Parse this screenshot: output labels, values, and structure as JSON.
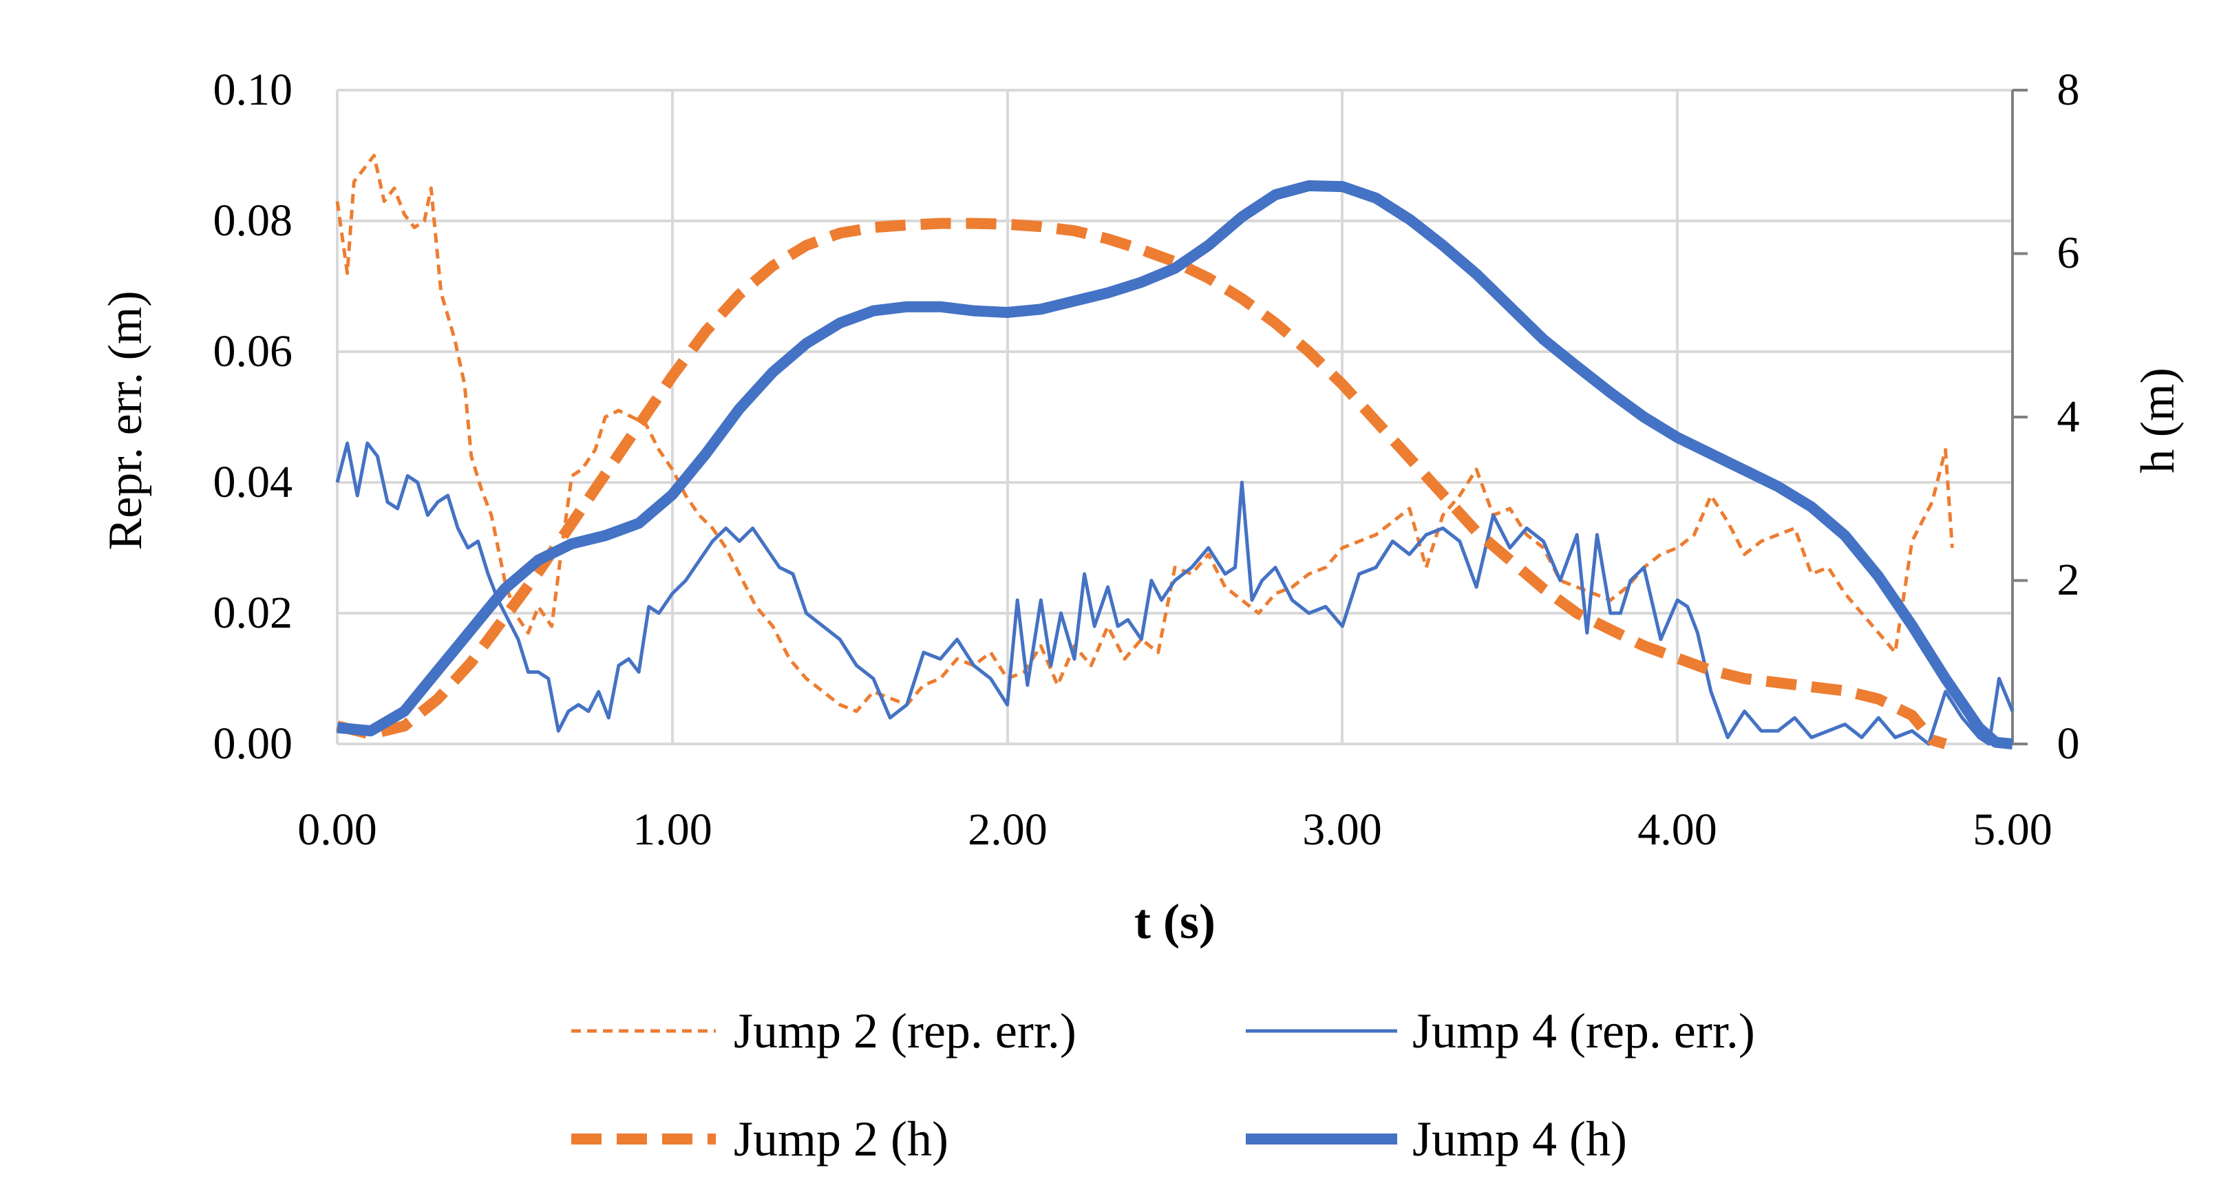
{
  "chart_data": {
    "type": "line",
    "title": "",
    "xlabel": "t (s)",
    "ylabel_left": "Repr. err. (m)",
    "ylabel_right": "h (m)",
    "xlim": [
      0,
      5
    ],
    "ylim_left": [
      0,
      0.1
    ],
    "ylim_right": [
      0,
      8
    ],
    "x_ticks": [
      "0.00",
      "1.00",
      "2.00",
      "3.00",
      "4.00",
      "5.00"
    ],
    "y_left_ticks": [
      "0.00",
      "0.02",
      "0.04",
      "0.06",
      "0.08",
      "0.10"
    ],
    "y_right_ticks": [
      "0",
      "2",
      "4",
      "6",
      "8"
    ],
    "grid": true,
    "legend_position": "bottom",
    "series": [
      {
        "name": "Jump 2 (rep. err.)",
        "axis": "left",
        "color": "#ED7D31",
        "style": "dashed-thin",
        "x": [
          0.0,
          0.03,
          0.05,
          0.08,
          0.11,
          0.14,
          0.17,
          0.2,
          0.23,
          0.26,
          0.28,
          0.31,
          0.35,
          0.38,
          0.4,
          0.43,
          0.46,
          0.5,
          0.53,
          0.57,
          0.6,
          0.64,
          0.67,
          0.7,
          0.73,
          0.77,
          0.8,
          0.84,
          0.88,
          0.92,
          0.96,
          1.0,
          1.04,
          1.08,
          1.12,
          1.16,
          1.2,
          1.25,
          1.3,
          1.35,
          1.4,
          1.45,
          1.5,
          1.55,
          1.6,
          1.65,
          1.7,
          1.75,
          1.8,
          1.85,
          1.9,
          1.95,
          2.0,
          2.05,
          2.1,
          2.15,
          2.2,
          2.25,
          2.3,
          2.35,
          2.4,
          2.45,
          2.5,
          2.55,
          2.6,
          2.65,
          2.7,
          2.75,
          2.8,
          2.85,
          2.9,
          2.95,
          3.0,
          3.05,
          3.1,
          3.15,
          3.2,
          3.25,
          3.3,
          3.35,
          3.4,
          3.45,
          3.5,
          3.55,
          3.6,
          3.65,
          3.7,
          3.75,
          3.8,
          3.85,
          3.9,
          3.95,
          4.0,
          4.05,
          4.1,
          4.15,
          4.2,
          4.25,
          4.3,
          4.35,
          4.4,
          4.45,
          4.5,
          4.55,
          4.6,
          4.65,
          4.7,
          4.73,
          4.76,
          4.8,
          4.82
        ],
        "values": [
          0.083,
          0.072,
          0.086,
          0.088,
          0.09,
          0.083,
          0.085,
          0.081,
          0.079,
          0.08,
          0.085,
          0.069,
          0.062,
          0.055,
          0.044,
          0.039,
          0.035,
          0.025,
          0.02,
          0.017,
          0.021,
          0.018,
          0.03,
          0.041,
          0.042,
          0.045,
          0.05,
          0.051,
          0.05,
          0.049,
          0.045,
          0.042,
          0.038,
          0.035,
          0.033,
          0.03,
          0.026,
          0.021,
          0.018,
          0.013,
          0.01,
          0.008,
          0.006,
          0.005,
          0.008,
          0.007,
          0.006,
          0.009,
          0.01,
          0.013,
          0.012,
          0.014,
          0.01,
          0.011,
          0.015,
          0.009,
          0.015,
          0.012,
          0.018,
          0.013,
          0.016,
          0.014,
          0.027,
          0.026,
          0.029,
          0.024,
          0.022,
          0.02,
          0.023,
          0.024,
          0.026,
          0.027,
          0.03,
          0.031,
          0.032,
          0.034,
          0.036,
          0.027,
          0.035,
          0.038,
          0.042,
          0.035,
          0.036,
          0.032,
          0.03,
          0.025,
          0.024,
          0.023,
          0.022,
          0.024,
          0.027,
          0.029,
          0.03,
          0.032,
          0.038,
          0.034,
          0.029,
          0.031,
          0.032,
          0.033,
          0.026,
          0.027,
          0.023,
          0.02,
          0.017,
          0.014,
          0.031,
          0.034,
          0.037,
          0.045,
          0.03
        ]
      },
      {
        "name": "Jump 4 (rep. err.)",
        "axis": "left",
        "color": "#4472C4",
        "style": "solid-thin",
        "x": [
          0.0,
          0.03,
          0.06,
          0.09,
          0.12,
          0.15,
          0.18,
          0.21,
          0.24,
          0.27,
          0.3,
          0.33,
          0.36,
          0.39,
          0.42,
          0.45,
          0.48,
          0.51,
          0.54,
          0.57,
          0.6,
          0.63,
          0.66,
          0.69,
          0.72,
          0.75,
          0.78,
          0.81,
          0.84,
          0.87,
          0.9,
          0.93,
          0.96,
          1.0,
          1.04,
          1.08,
          1.12,
          1.16,
          1.2,
          1.24,
          1.28,
          1.32,
          1.36,
          1.4,
          1.45,
          1.5,
          1.55,
          1.6,
          1.65,
          1.7,
          1.75,
          1.8,
          1.85,
          1.9,
          1.95,
          2.0,
          2.03,
          2.06,
          2.1,
          2.13,
          2.16,
          2.2,
          2.23,
          2.26,
          2.3,
          2.33,
          2.36,
          2.4,
          2.43,
          2.46,
          2.5,
          2.55,
          2.6,
          2.65,
          2.68,
          2.7,
          2.73,
          2.76,
          2.8,
          2.85,
          2.9,
          2.95,
          3.0,
          3.05,
          3.1,
          3.15,
          3.2,
          3.25,
          3.3,
          3.35,
          3.4,
          3.45,
          3.5,
          3.55,
          3.6,
          3.65,
          3.7,
          3.73,
          3.76,
          3.8,
          3.83,
          3.86,
          3.9,
          3.95,
          4.0,
          4.03,
          4.06,
          4.1,
          4.15,
          4.2,
          4.25,
          4.3,
          4.35,
          4.4,
          4.45,
          4.5,
          4.55,
          4.6,
          4.65,
          4.7,
          4.75,
          4.8,
          4.85,
          4.9,
          4.93,
          4.96,
          5.0
        ],
        "values": [
          0.04,
          0.046,
          0.038,
          0.046,
          0.044,
          0.037,
          0.036,
          0.041,
          0.04,
          0.035,
          0.037,
          0.038,
          0.033,
          0.03,
          0.031,
          0.026,
          0.022,
          0.019,
          0.016,
          0.011,
          0.011,
          0.01,
          0.002,
          0.005,
          0.006,
          0.005,
          0.008,
          0.004,
          0.012,
          0.013,
          0.011,
          0.021,
          0.02,
          0.023,
          0.025,
          0.028,
          0.031,
          0.033,
          0.031,
          0.033,
          0.03,
          0.027,
          0.026,
          0.02,
          0.018,
          0.016,
          0.012,
          0.01,
          0.004,
          0.006,
          0.014,
          0.013,
          0.016,
          0.012,
          0.01,
          0.006,
          0.022,
          0.009,
          0.022,
          0.012,
          0.02,
          0.013,
          0.026,
          0.018,
          0.024,
          0.018,
          0.019,
          0.016,
          0.025,
          0.022,
          0.025,
          0.027,
          0.03,
          0.026,
          0.027,
          0.04,
          0.022,
          0.025,
          0.027,
          0.022,
          0.02,
          0.021,
          0.018,
          0.026,
          0.027,
          0.031,
          0.029,
          0.032,
          0.033,
          0.031,
          0.024,
          0.035,
          0.03,
          0.033,
          0.031,
          0.025,
          0.032,
          0.017,
          0.032,
          0.02,
          0.02,
          0.025,
          0.027,
          0.016,
          0.022,
          0.021,
          0.017,
          0.008,
          0.001,
          0.005,
          0.002,
          0.002,
          0.004,
          0.001,
          0.002,
          0.003,
          0.001,
          0.004,
          0.001,
          0.002,
          0.0,
          0.008,
          0.004,
          0.001,
          0.0,
          0.01,
          0.005
        ]
      },
      {
        "name": "Jump 2 (h)",
        "axis": "right",
        "color": "#ED7D31",
        "style": "dashed-thick",
        "x": [
          0.0,
          0.1,
          0.2,
          0.3,
          0.4,
          0.5,
          0.6,
          0.7,
          0.8,
          0.9,
          1.0,
          1.1,
          1.2,
          1.3,
          1.4,
          1.5,
          1.6,
          1.7,
          1.8,
          1.9,
          2.0,
          2.1,
          2.2,
          2.3,
          2.4,
          2.5,
          2.6,
          2.7,
          2.8,
          2.9,
          3.0,
          3.1,
          3.2,
          3.3,
          3.4,
          3.5,
          3.6,
          3.7,
          3.8,
          3.9,
          4.0,
          4.1,
          4.2,
          4.3,
          4.4,
          4.5,
          4.6,
          4.7,
          4.76,
          4.8
        ],
        "values": [
          0.22,
          0.12,
          0.22,
          0.55,
          1.0,
          1.55,
          2.1,
          2.7,
          3.3,
          3.9,
          4.5,
          5.05,
          5.5,
          5.85,
          6.1,
          6.25,
          6.32,
          6.35,
          6.37,
          6.37,
          6.36,
          6.33,
          6.28,
          6.18,
          6.05,
          5.9,
          5.7,
          5.45,
          5.15,
          4.8,
          4.4,
          3.95,
          3.5,
          3.05,
          2.6,
          2.25,
          1.9,
          1.6,
          1.4,
          1.2,
          1.05,
          0.9,
          0.8,
          0.75,
          0.7,
          0.65,
          0.55,
          0.35,
          0.05,
          0.0
        ]
      },
      {
        "name": "Jump 4 (h)",
        "axis": "right",
        "color": "#4472C4",
        "style": "solid-thick",
        "x": [
          0.0,
          0.1,
          0.2,
          0.3,
          0.4,
          0.5,
          0.6,
          0.7,
          0.8,
          0.9,
          1.0,
          1.1,
          1.2,
          1.3,
          1.4,
          1.5,
          1.6,
          1.7,
          1.8,
          1.9,
          2.0,
          2.1,
          2.2,
          2.3,
          2.4,
          2.5,
          2.6,
          2.7,
          2.8,
          2.9,
          3.0,
          3.1,
          3.2,
          3.3,
          3.4,
          3.5,
          3.6,
          3.7,
          3.8,
          3.9,
          4.0,
          4.1,
          4.2,
          4.3,
          4.4,
          4.5,
          4.6,
          4.7,
          4.8,
          4.9,
          4.95,
          5.0
        ],
        "values": [
          0.2,
          0.16,
          0.4,
          0.9,
          1.4,
          1.9,
          2.25,
          2.45,
          2.55,
          2.7,
          3.05,
          3.55,
          4.1,
          4.55,
          4.9,
          5.15,
          5.3,
          5.35,
          5.35,
          5.3,
          5.28,
          5.32,
          5.42,
          5.52,
          5.65,
          5.82,
          6.1,
          6.45,
          6.72,
          6.83,
          6.82,
          6.68,
          6.42,
          6.1,
          5.75,
          5.35,
          4.95,
          4.62,
          4.3,
          4.0,
          3.75,
          3.55,
          3.35,
          3.15,
          2.9,
          2.55,
          2.05,
          1.45,
          0.8,
          0.2,
          0.02,
          0.0
        ]
      }
    ]
  }
}
